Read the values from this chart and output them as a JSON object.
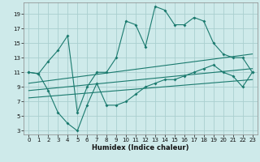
{
  "xlabel": "Humidex (Indice chaleur)",
  "bg_color": "#ceeaea",
  "grid_color": "#aacfcf",
  "line_color": "#1a7a6e",
  "xlim": [
    -0.5,
    23.5
  ],
  "ylim": [
    2.5,
    20.5
  ],
  "xticks": [
    0,
    1,
    2,
    3,
    4,
    5,
    6,
    7,
    8,
    9,
    10,
    11,
    12,
    13,
    14,
    15,
    16,
    17,
    18,
    19,
    20,
    21,
    22,
    23
  ],
  "yticks": [
    3,
    5,
    7,
    9,
    11,
    13,
    15,
    17,
    19
  ],
  "series1_x": [
    0,
    1,
    2,
    3,
    4,
    5,
    6,
    7,
    8,
    9,
    10,
    11,
    12,
    13,
    14,
    15,
    16,
    17,
    18,
    19,
    20,
    21,
    22,
    23
  ],
  "series1_y": [
    11,
    10.8,
    12.5,
    14,
    16,
    5.5,
    9.0,
    11.0,
    11.0,
    13,
    18,
    17.5,
    14.5,
    20,
    19.5,
    17.5,
    17.5,
    18.5,
    18,
    15,
    13.5,
    13,
    13,
    11
  ],
  "series2_x": [
    0,
    1,
    2,
    3,
    4,
    5,
    6,
    7,
    8,
    9,
    10,
    11,
    12,
    13,
    14,
    15,
    16,
    17,
    18,
    19,
    20,
    21,
    22,
    23
  ],
  "series2_y": [
    11,
    10.8,
    8.5,
    5.5,
    4.0,
    3.0,
    6.5,
    9.5,
    6.5,
    6.5,
    7.0,
    8.0,
    9.0,
    9.5,
    10,
    10,
    10.5,
    11,
    11.5,
    12,
    11,
    10.5,
    9.0,
    11
  ],
  "line1_x": [
    0,
    23
  ],
  "line1_y": [
    9.5,
    13.5
  ],
  "line2_x": [
    0,
    23
  ],
  "line2_y": [
    8.5,
    11.5
  ],
  "line3_x": [
    0,
    23
  ],
  "line3_y": [
    7.5,
    10.0
  ]
}
